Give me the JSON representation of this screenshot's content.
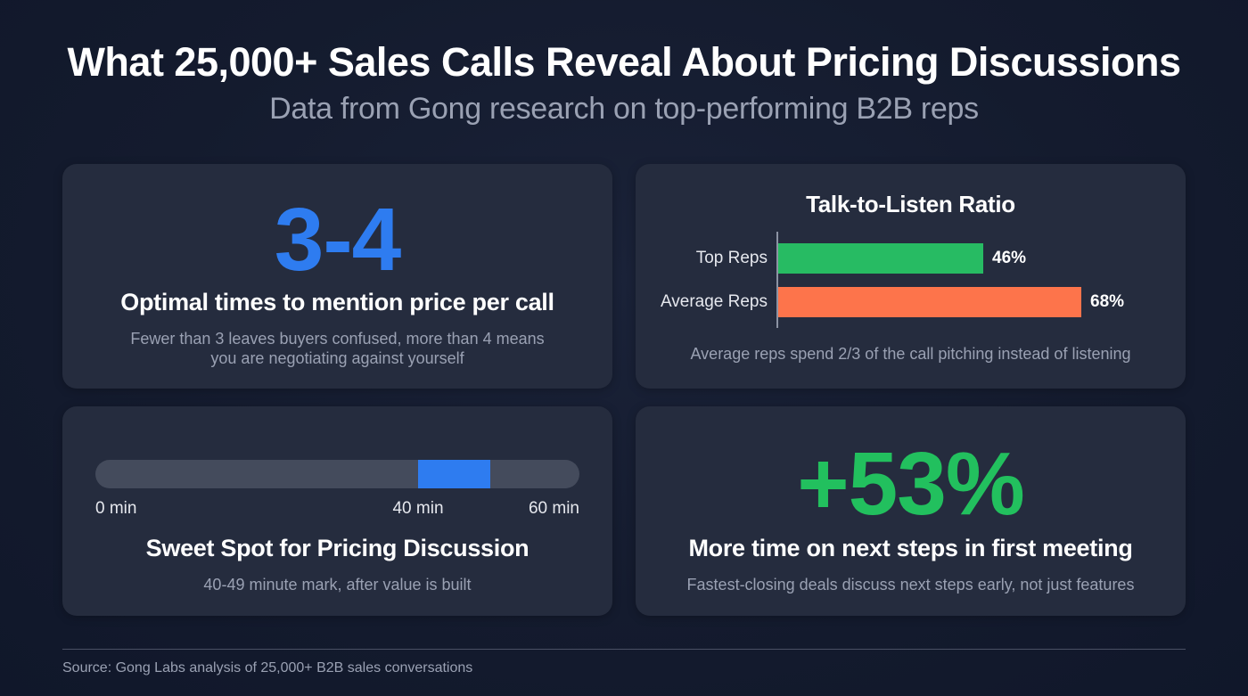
{
  "header": {
    "title": "What 25,000+ Sales Calls Reveal About Pricing Discussions",
    "subtitle": "Data from Gong research on top-performing B2B reps"
  },
  "colors": {
    "background": "#141b2e",
    "card": "#252c3e",
    "accent_blue": "#2e7cf0",
    "accent_green": "#22c05e",
    "accent_orange": "#fd744b",
    "muted_text": "#9aa1b3"
  },
  "cards": {
    "price_mentions": {
      "value": "3-4",
      "heading": "Optimal times to mention price per call",
      "description": "Fewer than 3 leaves buyers confused, more than 4 means you are negotiating against yourself"
    },
    "talk_listen": {
      "title": "Talk-to-Listen Ratio",
      "note": "Average reps spend 2/3 of the call pitching instead of listening"
    },
    "sweet_spot": {
      "ticks": [
        {
          "label": "0 min",
          "minute": 0
        },
        {
          "label": "40 min",
          "minute": 40
        },
        {
          "label": "60 min",
          "minute": 60
        }
      ],
      "range_start_min": 40,
      "range_end_min": 49,
      "total_min": 60,
      "heading": "Sweet Spot for Pricing Discussion",
      "description": "40-49 minute mark, after value is built"
    },
    "next_steps": {
      "value": "+53%",
      "heading": "More time on next steps in first meeting",
      "description": "Fastest-closing deals discuss next steps early, not just features"
    }
  },
  "chart_data": {
    "type": "bar",
    "orientation": "horizontal",
    "title": "Talk-to-Listen Ratio",
    "categories": [
      "Top Reps",
      "Average Reps"
    ],
    "values": [
      46,
      68
    ],
    "value_labels": [
      "46%",
      "68%"
    ],
    "colors": [
      "#27bb63",
      "#fd744b"
    ],
    "xlabel": "",
    "ylabel": "",
    "xlim": [
      0,
      100
    ],
    "grid": false,
    "legend": "none",
    "annotation": "Average reps spend 2/3 of the call pitching instead of listening"
  },
  "footer": {
    "source": "Source: Gong Labs analysis of 25,000+ B2B sales conversations"
  }
}
